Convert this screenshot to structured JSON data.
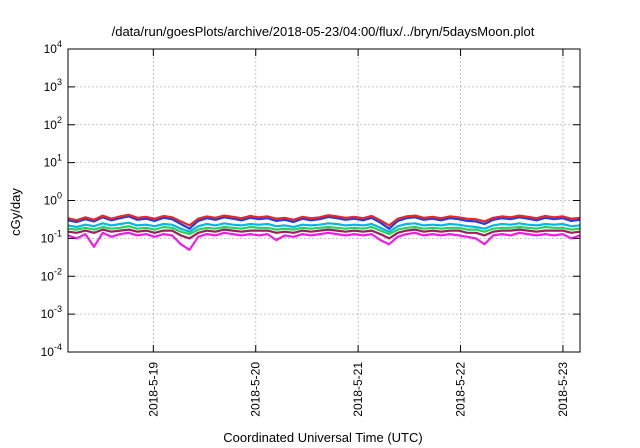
{
  "chart_data": {
    "type": "line",
    "title": "/data/run/goesPlots/archive/2018-05-23/04:00/flux/../bryn/5daysMoon.plot",
    "xlabel": "Coordinated Universal Time (UTC)",
    "ylabel": "cGy/day",
    "yscale": "log",
    "ylim": [
      0.0001,
      10000
    ],
    "xlim": [
      "2018-05-18T04:00",
      "2018-05-23T04:00"
    ],
    "grid": true,
    "legend": "none",
    "y_ticks": [
      {
        "base": "10",
        "exp": "-4"
      },
      {
        "base": "10",
        "exp": "-3"
      },
      {
        "base": "10",
        "exp": "-2"
      },
      {
        "base": "10",
        "exp": "-1"
      },
      {
        "base": "10",
        "exp": "0"
      },
      {
        "base": "10",
        "exp": "1"
      },
      {
        "base": "10",
        "exp": "2"
      },
      {
        "base": "10",
        "exp": "3"
      },
      {
        "base": "10",
        "exp": "4"
      }
    ],
    "x_ticks": [
      "2018-5-19",
      "2018-5-20",
      "2018-5-21",
      "2018-5-22",
      "2018-5-23"
    ],
    "series": [
      {
        "color": "#e8262c",
        "values": [
          0.34,
          0.3,
          0.36,
          0.31,
          0.4,
          0.33,
          0.38,
          0.42,
          0.35,
          0.37,
          0.33,
          0.39,
          0.36,
          0.28,
          0.22,
          0.33,
          0.38,
          0.35,
          0.4,
          0.37,
          0.34,
          0.39,
          0.36,
          0.38,
          0.33,
          0.35,
          0.31,
          0.37,
          0.34,
          0.36,
          0.41,
          0.38,
          0.35,
          0.37,
          0.34,
          0.39,
          0.3,
          0.22,
          0.33,
          0.38,
          0.4,
          0.35,
          0.37,
          0.34,
          0.38,
          0.36,
          0.33,
          0.32,
          0.28,
          0.35,
          0.38,
          0.36,
          0.4,
          0.37,
          0.34,
          0.39,
          0.36,
          0.38,
          0.33,
          0.35
        ]
      },
      {
        "color": "#1f3fdd",
        "values": [
          0.3,
          0.27,
          0.32,
          0.28,
          0.36,
          0.3,
          0.34,
          0.38,
          0.31,
          0.33,
          0.29,
          0.35,
          0.32,
          0.24,
          0.18,
          0.29,
          0.34,
          0.31,
          0.36,
          0.33,
          0.3,
          0.35,
          0.32,
          0.34,
          0.29,
          0.31,
          0.27,
          0.33,
          0.3,
          0.32,
          0.37,
          0.34,
          0.31,
          0.33,
          0.3,
          0.35,
          0.26,
          0.18,
          0.29,
          0.34,
          0.36,
          0.31,
          0.33,
          0.3,
          0.34,
          0.32,
          0.29,
          0.28,
          0.24,
          0.31,
          0.34,
          0.32,
          0.36,
          0.33,
          0.3,
          0.35,
          0.32,
          0.34,
          0.29,
          0.31
        ]
      },
      {
        "color": "#00b8e0",
        "values": [
          0.22,
          0.2,
          0.23,
          0.21,
          0.25,
          0.22,
          0.24,
          0.26,
          0.22,
          0.23,
          0.21,
          0.24,
          0.23,
          0.18,
          0.15,
          0.21,
          0.24,
          0.22,
          0.25,
          0.23,
          0.22,
          0.24,
          0.23,
          0.24,
          0.21,
          0.22,
          0.2,
          0.23,
          0.22,
          0.23,
          0.25,
          0.24,
          0.22,
          0.23,
          0.22,
          0.24,
          0.19,
          0.15,
          0.21,
          0.24,
          0.25,
          0.22,
          0.23,
          0.22,
          0.24,
          0.23,
          0.21,
          0.2,
          0.18,
          0.22,
          0.24,
          0.23,
          0.25,
          0.23,
          0.22,
          0.24,
          0.23,
          0.24,
          0.21,
          0.22
        ]
      },
      {
        "color": "#2ecf5a",
        "values": [
          0.18,
          0.17,
          0.19,
          0.17,
          0.2,
          0.18,
          0.19,
          0.21,
          0.18,
          0.19,
          0.17,
          0.2,
          0.19,
          0.15,
          0.13,
          0.17,
          0.19,
          0.18,
          0.2,
          0.19,
          0.18,
          0.2,
          0.19,
          0.19,
          0.17,
          0.18,
          0.17,
          0.19,
          0.18,
          0.19,
          0.2,
          0.19,
          0.18,
          0.19,
          0.18,
          0.2,
          0.16,
          0.13,
          0.17,
          0.19,
          0.2,
          0.18,
          0.19,
          0.18,
          0.19,
          0.19,
          0.17,
          0.17,
          0.15,
          0.18,
          0.19,
          0.19,
          0.2,
          0.19,
          0.18,
          0.2,
          0.19,
          0.19,
          0.17,
          0.18
        ]
      },
      {
        "color": "#9b1f5c",
        "values": [
          0.15,
          0.14,
          0.16,
          0.14,
          0.17,
          0.15,
          0.16,
          0.17,
          0.15,
          0.16,
          0.14,
          0.16,
          0.16,
          0.12,
          0.1,
          0.14,
          0.16,
          0.15,
          0.17,
          0.16,
          0.15,
          0.16,
          0.16,
          0.16,
          0.14,
          0.15,
          0.14,
          0.16,
          0.15,
          0.16,
          0.17,
          0.16,
          0.15,
          0.16,
          0.15,
          0.16,
          0.13,
          0.1,
          0.14,
          0.16,
          0.17,
          0.15,
          0.16,
          0.15,
          0.16,
          0.16,
          0.14,
          0.14,
          0.12,
          0.15,
          0.16,
          0.16,
          0.17,
          0.16,
          0.15,
          0.16,
          0.16,
          0.16,
          0.14,
          0.15
        ]
      },
      {
        "color": "#ee1de8",
        "values": [
          0.12,
          0.1,
          0.13,
          0.06,
          0.14,
          0.11,
          0.13,
          0.14,
          0.12,
          0.13,
          0.11,
          0.13,
          0.12,
          0.07,
          0.05,
          0.11,
          0.13,
          0.12,
          0.14,
          0.13,
          0.12,
          0.13,
          0.12,
          0.13,
          0.09,
          0.12,
          0.11,
          0.13,
          0.12,
          0.13,
          0.14,
          0.13,
          0.12,
          0.13,
          0.12,
          0.13,
          0.09,
          0.07,
          0.11,
          0.13,
          0.14,
          0.12,
          0.13,
          0.12,
          0.13,
          0.12,
          0.11,
          0.1,
          0.07,
          0.12,
          0.13,
          0.12,
          0.14,
          0.13,
          0.12,
          0.13,
          0.12,
          0.13,
          0.1,
          0.12
        ]
      }
    ]
  }
}
